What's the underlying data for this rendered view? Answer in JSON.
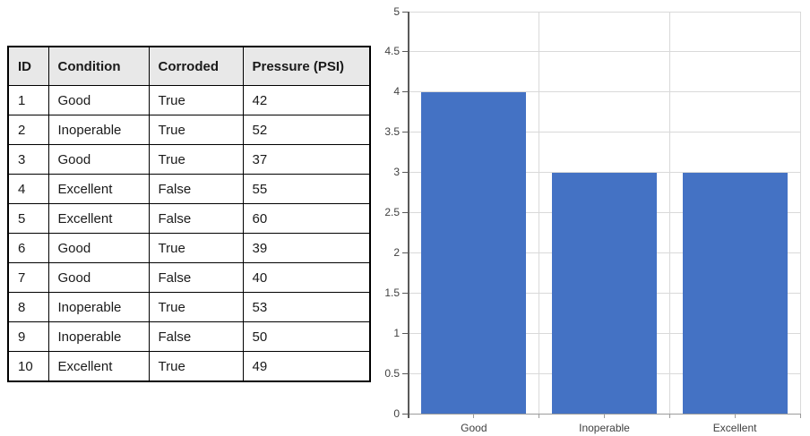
{
  "table": {
    "headers": [
      "ID",
      "Condition",
      "Corroded",
      "Pressure (PSI)"
    ],
    "rows": [
      [
        "1",
        "Good",
        "True",
        "42"
      ],
      [
        "2",
        "Inoperable",
        "True",
        "52"
      ],
      [
        "3",
        "Good",
        "True",
        "37"
      ],
      [
        "4",
        "Excellent",
        "False",
        "55"
      ],
      [
        "5",
        "Excellent",
        "False",
        "60"
      ],
      [
        "6",
        "Good",
        "True",
        "39"
      ],
      [
        "7",
        "Good",
        "False",
        "40"
      ],
      [
        "8",
        "Inoperable",
        "True",
        "53"
      ],
      [
        "9",
        "Inoperable",
        "False",
        "50"
      ],
      [
        "10",
        "Excellent",
        "True",
        "49"
      ]
    ],
    "header_bg": "#E8E8E8",
    "border_color": "#000000"
  },
  "chart_data": {
    "type": "bar",
    "categories": [
      "Good",
      "Inoperable",
      "Excellent"
    ],
    "values": [
      4,
      3,
      3
    ],
    "title": "",
    "xlabel": "",
    "ylabel": "",
    "ylim": [
      0,
      5
    ],
    "ytick_step": 0.5,
    "grid": true,
    "legend": false,
    "bar_color": "#4472C4",
    "gridline_color": "#D9D9D9",
    "yaxis_color": "#595959",
    "xaxis_color": "#9B9B9B",
    "tick_label_color": "#404040"
  }
}
